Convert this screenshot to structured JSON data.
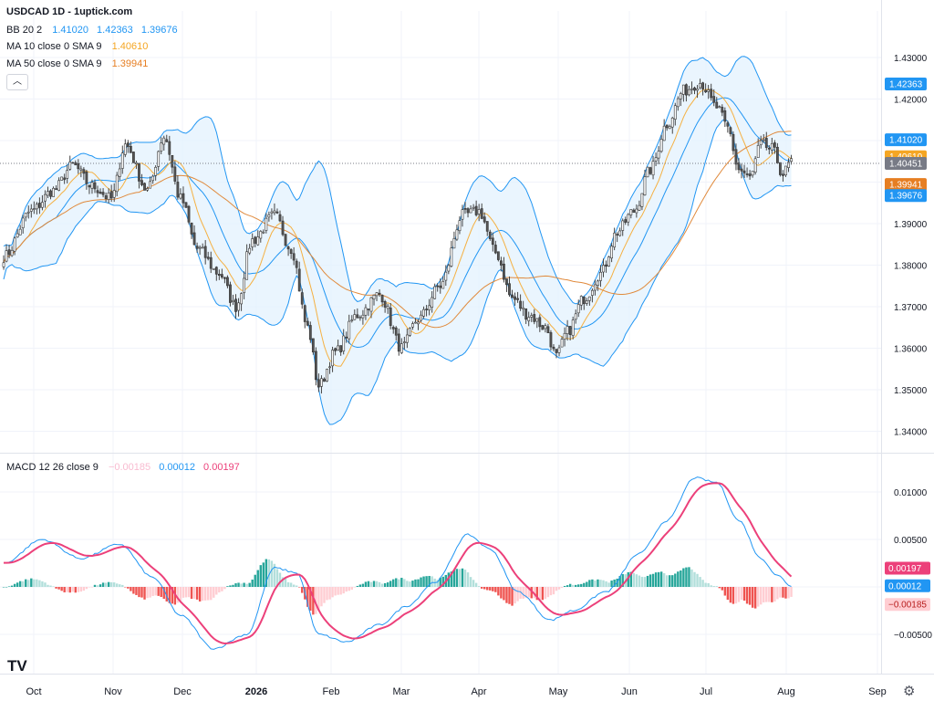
{
  "header": {
    "title": "USDCAD 1D - 1uptick.com",
    "bb_label": "BB 20 2",
    "bb_values": [
      "1.41020",
      "1.42363",
      "1.39676"
    ],
    "ma10_label": "MA 10 close 0 SMA 9",
    "ma10_value": "1.40610",
    "ma50_label": "MA 50 close 0 SMA 9",
    "ma50_value": "1.39941",
    "macd_label": "MACD 12 26 close 9",
    "macd_values": [
      "−0.00185",
      "0.00012",
      "0.00197"
    ]
  },
  "logo_text": "TV",
  "icons": {
    "collapse": "chevron-up-icon",
    "settings": "gear-icon"
  },
  "colors": {
    "up": "#26a69a",
    "down": "#ef5350",
    "bb": "#2196f3",
    "bb_fill": "#e3f2fd",
    "ma10": "#f5b041",
    "ma50": "#e08a3c",
    "macd": "#2196f3",
    "signal": "#ec407a",
    "hist_up_strong": "#26a69a",
    "hist_up_weak": "#b2dfdb",
    "hist_down_strong": "#ef5350",
    "hist_down_weak": "#ffcdd2"
  },
  "chart_data": [
    {
      "type": "candlestick",
      "title": "USDCAD 1D - 1uptick.com",
      "x_ticks": [
        "Oct",
        "Nov",
        "Dec",
        "2026",
        "Feb",
        "Mar",
        "Apr",
        "May",
        "Jun",
        "Jul",
        "Aug",
        "Sep"
      ],
      "y_ticks": [
        "1.43000",
        "1.42000",
        "1.41000",
        "1.40000",
        "1.39000",
        "1.38000",
        "1.37000",
        "1.36000",
        "1.35000",
        "1.34000"
      ],
      "ylim": [
        1.3375,
        1.4375
      ],
      "last_price": "1.40451",
      "price_labels": [
        {
          "text": "1.42363",
          "value": 1.42363,
          "color": "#2196f3"
        },
        {
          "text": "1.41020",
          "value": 1.4102,
          "color": "#2196f3"
        },
        {
          "text": "1.40610",
          "value": 1.4061,
          "color": "#f5a623"
        },
        {
          "text": "1.40451",
          "value": 1.40451,
          "color": "#787b86"
        },
        {
          "text": "1.39941",
          "value": 1.39941,
          "color": "#e67e22"
        },
        {
          "text": "1.39676",
          "value": 1.39676,
          "color": "#2196f3"
        }
      ],
      "close_anchors": [
        [
          0,
          1.382
        ],
        [
          10,
          1.393
        ],
        [
          18,
          1.398
        ],
        [
          25,
          1.404
        ],
        [
          32,
          1.399
        ],
        [
          39,
          1.396
        ],
        [
          44,
          1.409
        ],
        [
          52,
          1.398
        ],
        [
          58,
          1.411
        ],
        [
          64,
          1.396
        ],
        [
          70,
          1.384
        ],
        [
          78,
          1.378
        ],
        [
          84,
          1.37
        ],
        [
          90,
          1.386
        ],
        [
          98,
          1.392
        ],
        [
          104,
          1.384
        ],
        [
          110,
          1.365
        ],
        [
          114,
          1.351
        ],
        [
          120,
          1.359
        ],
        [
          128,
          1.368
        ],
        [
          136,
          1.373
        ],
        [
          144,
          1.36
        ],
        [
          150,
          1.367
        ],
        [
          158,
          1.375
        ],
        [
          166,
          1.392
        ],
        [
          172,
          1.393
        ],
        [
          178,
          1.383
        ],
        [
          184,
          1.372
        ],
        [
          190,
          1.368
        ],
        [
          196,
          1.365
        ],
        [
          200,
          1.358
        ],
        [
          204,
          1.364
        ],
        [
          210,
          1.372
        ],
        [
          216,
          1.378
        ],
        [
          222,
          1.388
        ],
        [
          228,
          1.393
        ],
        [
          234,
          1.403
        ],
        [
          240,
          1.414
        ],
        [
          246,
          1.422
        ],
        [
          252,
          1.424
        ],
        [
          258,
          1.418
        ],
        [
          262,
          1.413
        ],
        [
          266,
          1.403
        ],
        [
          270,
          1.401
        ],
        [
          274,
          1.409
        ],
        [
          278,
          1.408
        ],
        [
          282,
          1.402
        ],
        [
          285,
          1.405
        ]
      ],
      "ma10_last": 1.4061,
      "ma50_last": 1.39941,
      "bb_last": {
        "upper": 1.42363,
        "middle": 1.4102,
        "lower": 1.39676
      }
    },
    {
      "type": "macd",
      "title": "MACD 12 26 close 9",
      "y_ticks": [
        "0.01000",
        "0.00500",
        "0.00000",
        "−0.00500"
      ],
      "ylim": [
        -0.0085,
        0.0125
      ],
      "macd_anchors": [
        [
          0,
          0.0025
        ],
        [
          14,
          0.005
        ],
        [
          28,
          0.003
        ],
        [
          42,
          0.0045
        ],
        [
          54,
          0.001
        ],
        [
          64,
          -0.003
        ],
        [
          76,
          -0.0065
        ],
        [
          88,
          -0.005
        ],
        [
          98,
          0.002
        ],
        [
          106,
          0.0015
        ],
        [
          114,
          -0.005
        ],
        [
          124,
          -0.0058
        ],
        [
          136,
          -0.004
        ],
        [
          146,
          -0.002
        ],
        [
          156,
          0.0005
        ],
        [
          168,
          0.0055
        ],
        [
          176,
          0.004
        ],
        [
          186,
          -0.0005
        ],
        [
          198,
          -0.0035
        ],
        [
          206,
          -0.0025
        ],
        [
          218,
          -0.0005
        ],
        [
          230,
          0.0035
        ],
        [
          240,
          0.007
        ],
        [
          250,
          0.0115
        ],
        [
          258,
          0.011
        ],
        [
          266,
          0.007
        ],
        [
          274,
          0.003
        ],
        [
          280,
          0.0012
        ],
        [
          285,
          0.0001
        ]
      ],
      "labels": [
        {
          "text": "0.00197",
          "value": 0.00197,
          "color": "#ec407a"
        },
        {
          "text": "0.00012",
          "value": 0.00012,
          "color": "#2196f3"
        },
        {
          "text": "−0.00185",
          "value": -0.00185,
          "color": "#ffcdd2",
          "text_color": "#b71c1c"
        }
      ]
    }
  ]
}
